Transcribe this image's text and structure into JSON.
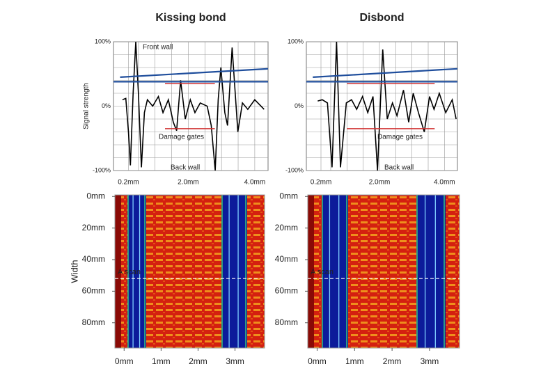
{
  "chart_data": [
    {
      "type": "line",
      "title": "Kissing bond",
      "ylabel": "Signal strength",
      "xlim": [
        -0.25,
        4.4
      ],
      "ylim": [
        -100,
        100
      ],
      "xticks": [
        {
          "value": 0.2,
          "label": "0.2mm"
        },
        {
          "value": 2,
          "label": "2.0mm"
        },
        {
          "value": 4,
          "label": "4.0mm"
        }
      ],
      "yticks": [
        {
          "value": -100,
          "label": "-100%"
        },
        {
          "value": 0,
          "label": "0%"
        },
        {
          "value": 100,
          "label": "100%"
        }
      ],
      "grid": true,
      "grid_x": [
        0.5,
        1,
        1.5,
        2.5,
        3,
        3.5
      ],
      "grid_y": [
        -80,
        -60,
        -40,
        -20,
        20,
        40,
        60,
        80
      ],
      "annotations": [
        "Front wall",
        "Back wall",
        "Damage gates"
      ],
      "series": [
        {
          "color": "#000000",
          "x": [
            0.02,
            0.12,
            0.2,
            0.26,
            0.34,
            0.42,
            0.5,
            0.59,
            0.68,
            0.77,
            0.93,
            1.1,
            1.24,
            1.4,
            1.55,
            1.65,
            1.77,
            1.91,
            2.06,
            2.2,
            2.36,
            2.57,
            2.69,
            2.81,
            2.9,
            2.98,
            3.1,
            3.18,
            3.32,
            3.49,
            3.63,
            3.79,
            4.0,
            4.28
          ],
          "values": [
            10,
            12,
            -40,
            -92,
            20,
            100,
            20,
            -95,
            -10,
            10,
            0,
            15,
            -10,
            10,
            -25,
            -38,
            40,
            -20,
            10,
            -10,
            5,
            0,
            -30,
            -100,
            10,
            60,
            -10,
            -30,
            91,
            -40,
            5,
            -5,
            10,
            -5
          ]
        },
        {
          "color": "#1f4e9c",
          "x": [
            -0.05,
            4.4
          ],
          "values": [
            45,
            58
          ]
        },
        {
          "color": "#1f4e9c",
          "x": [
            -0.25,
            4.4
          ],
          "values": [
            38,
            38
          ]
        },
        {
          "color": "#d03030",
          "x": [
            1.3,
            2.8
          ],
          "values": [
            35,
            35
          ]
        },
        {
          "color": "#d03030",
          "x": [
            1.3,
            2.8
          ],
          "values": [
            -35,
            -35
          ]
        }
      ]
    },
    {
      "type": "line",
      "title": "Disbond",
      "xlim": [
        -0.25,
        4.4
      ],
      "ylim": [
        -100,
        100
      ],
      "xticks": [
        {
          "value": 0.2,
          "label": "0.2mm"
        },
        {
          "value": 2,
          "label": "2.0mm"
        },
        {
          "value": 4,
          "label": "4.0mm"
        }
      ],
      "yticks": [
        {
          "value": -100,
          "label": "-100%"
        },
        {
          "value": 0,
          "label": "0%"
        },
        {
          "value": 100,
          "label": "100%"
        }
      ],
      "grid": true,
      "grid_x": [
        0.5,
        1,
        1.5,
        2.5,
        3,
        3.5
      ],
      "grid_y": [
        -80,
        -60,
        -40,
        -20,
        20,
        40,
        60,
        80
      ],
      "annotations": [
        "Back wall",
        "Damage gates"
      ],
      "series": [
        {
          "color": "#000000",
          "x": [
            0.1,
            0.24,
            0.4,
            0.54,
            0.68,
            0.8,
            0.98,
            1.14,
            1.3,
            1.48,
            1.64,
            1.8,
            1.94,
            2.1,
            2.24,
            2.4,
            2.54,
            2.74,
            2.9,
            3.04,
            3.2,
            3.38,
            3.54,
            3.68,
            3.84,
            4.04,
            4.24,
            4.36
          ],
          "values": [
            8,
            10,
            5,
            -95,
            100,
            -95,
            5,
            10,
            -5,
            15,
            -10,
            15,
            -100,
            88,
            -20,
            5,
            -15,
            25,
            -25,
            20,
            -10,
            -40,
            15,
            -5,
            20,
            -10,
            10,
            -20
          ]
        },
        {
          "color": "#1f4e9c",
          "x": [
            -0.05,
            4.4
          ],
          "values": [
            45,
            58
          ]
        },
        {
          "color": "#1f4e9c",
          "x": [
            -0.25,
            4.4
          ],
          "values": [
            38,
            38
          ]
        },
        {
          "color": "#d03030",
          "x": [
            1.0,
            3.7
          ],
          "values": [
            35,
            35
          ]
        },
        {
          "color": "#d03030",
          "x": [
            1.0,
            3.7
          ],
          "values": [
            -35,
            -35
          ]
        }
      ]
    },
    {
      "type": "heatmap",
      "ylabel": "Width",
      "xlim": [
        -0.25,
        3.8
      ],
      "ylim": [
        -1,
        96
      ],
      "xticks": [
        {
          "value": 0,
          "label": "0mm"
        },
        {
          "value": 1,
          "label": "1mm"
        },
        {
          "value": 2,
          "label": "2mm"
        },
        {
          "value": 3,
          "label": "3mm"
        }
      ],
      "yticks": [
        {
          "value": 0,
          "label": "0mm"
        },
        {
          "value": 20,
          "label": "20mm"
        },
        {
          "value": 40,
          "label": "40mm"
        },
        {
          "value": 60,
          "label": "60mm"
        },
        {
          "value": 80,
          "label": "80mm"
        }
      ],
      "annotation": "A scan",
      "marker_y": 52
    },
    {
      "type": "heatmap",
      "xlim": [
        -0.25,
        3.8
      ],
      "ylim": [
        -1,
        96
      ],
      "xticks": [
        {
          "value": 0,
          "label": "0mm"
        },
        {
          "value": 1,
          "label": "1mm"
        },
        {
          "value": 2,
          "label": "2mm"
        },
        {
          "value": 3,
          "label": "3mm"
        }
      ],
      "yticks": [
        {
          "value": 0,
          "label": "0mm"
        },
        {
          "value": 20,
          "label": "20mm"
        },
        {
          "value": 40,
          "label": "40mm"
        },
        {
          "value": 60,
          "label": "60mm"
        },
        {
          "value": 80,
          "label": "80mm"
        }
      ],
      "annotation": "A scan",
      "marker_y": 52
    }
  ]
}
